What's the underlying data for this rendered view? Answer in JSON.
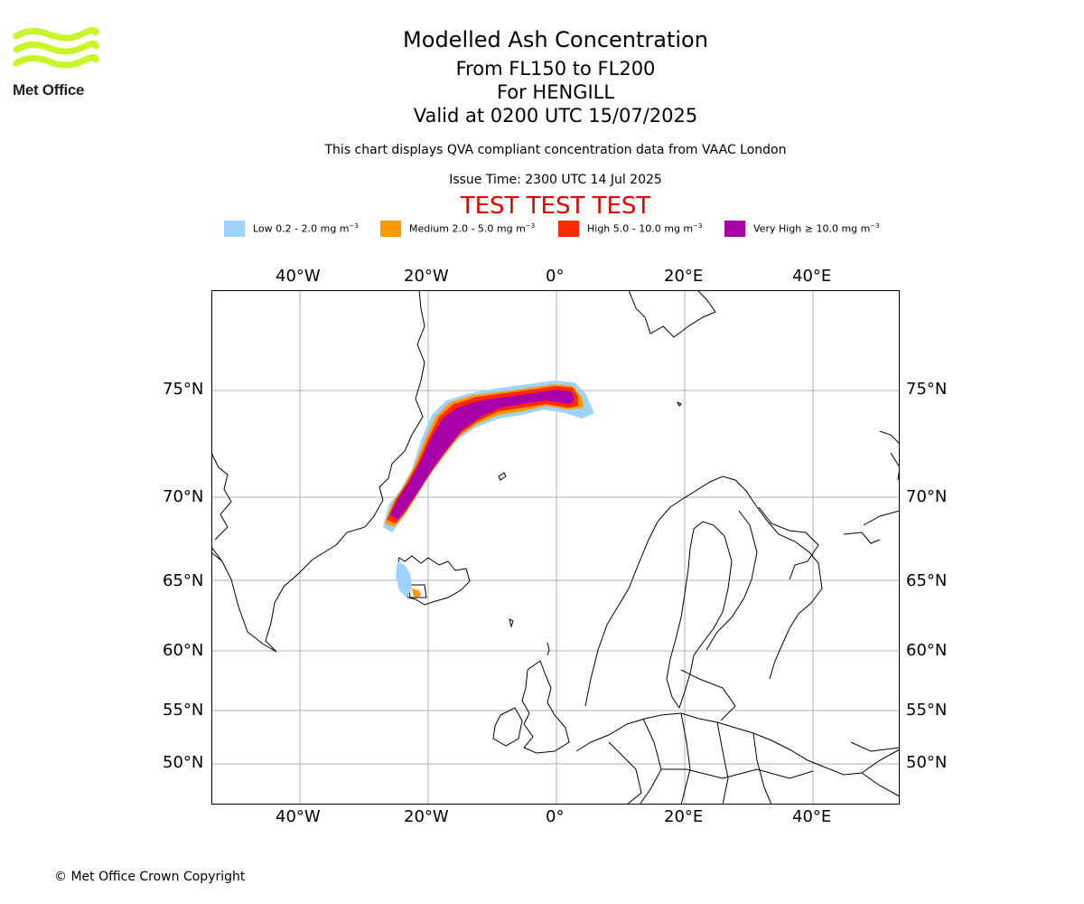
{
  "logo": {
    "text": "Met Office",
    "color": "#c6f52a"
  },
  "title": {
    "main": "Modelled Ash Concentration",
    "levels": "From FL150 to FL200",
    "volcano": "For HENGILL",
    "valid": "Valid at 0200 UTC 15/07/2025"
  },
  "subtitle": "This chart displays QVA compliant concentration data from VAAC London",
  "issue_time": "Issue Time: 2300 UTC 14 Jul 2025",
  "test_banner": "TEST TEST TEST",
  "legend": [
    {
      "label": "Low 0.2 - 2.0 mg m",
      "sup": "−3",
      "color": "#9ed3ff"
    },
    {
      "label": "Medium 2.0 - 5.0 mg m",
      "sup": "−3",
      "color": "#ff9900"
    },
    {
      "label": "High 5.0 - 10.0 mg m",
      "sup": "−3",
      "color": "#ff2a00"
    },
    {
      "label": "Very High  ≥  10.0 mg m",
      "sup": "−3",
      "color": "#aa00aa"
    }
  ],
  "map": {
    "lon_labels": [
      "40°W",
      "20°W",
      "0°",
      "20°E",
      "40°E"
    ],
    "lat_labels": [
      "75°N",
      "70°N",
      "65°N",
      "60°N",
      "55°N",
      "50°N"
    ],
    "gridlines": true
  },
  "copyright": "© Met Office Crown Copyright"
}
